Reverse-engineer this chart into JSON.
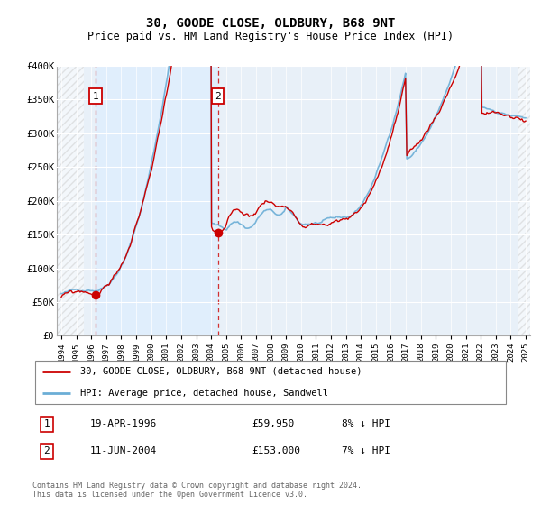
{
  "title": "30, GOODE CLOSE, OLDBURY, B68 9NT",
  "subtitle": "Price paid vs. HM Land Registry's House Price Index (HPI)",
  "ylim": [
    0,
    400000
  ],
  "yticks": [
    0,
    50000,
    100000,
    150000,
    200000,
    250000,
    300000,
    350000,
    400000
  ],
  "ytick_labels": [
    "£0",
    "£50K",
    "£100K",
    "£150K",
    "£200K",
    "£250K",
    "£300K",
    "£350K",
    "£400K"
  ],
  "xlim_start": 1993.7,
  "xlim_end": 2025.3,
  "hpi_color": "#6baed6",
  "price_color": "#cc0000",
  "shade_color": "#ddeeff",
  "bg_color": "#e8f0f8",
  "transaction1_year": 1996.3,
  "transaction1_price": 59950,
  "transaction2_year": 2004.45,
  "transaction2_price": 153000,
  "legend_price_label": "30, GOODE CLOSE, OLDBURY, B68 9NT (detached house)",
  "legend_hpi_label": "HPI: Average price, detached house, Sandwell",
  "table_row1": [
    "1",
    "19-APR-1996",
    "£59,950",
    "8% ↓ HPI"
  ],
  "table_row2": [
    "2",
    "11-JUN-2004",
    "£153,000",
    "7% ↓ HPI"
  ],
  "footer": "Contains HM Land Registry data © Crown copyright and database right 2024.\nThis data is licensed under the Open Government Licence v3.0."
}
